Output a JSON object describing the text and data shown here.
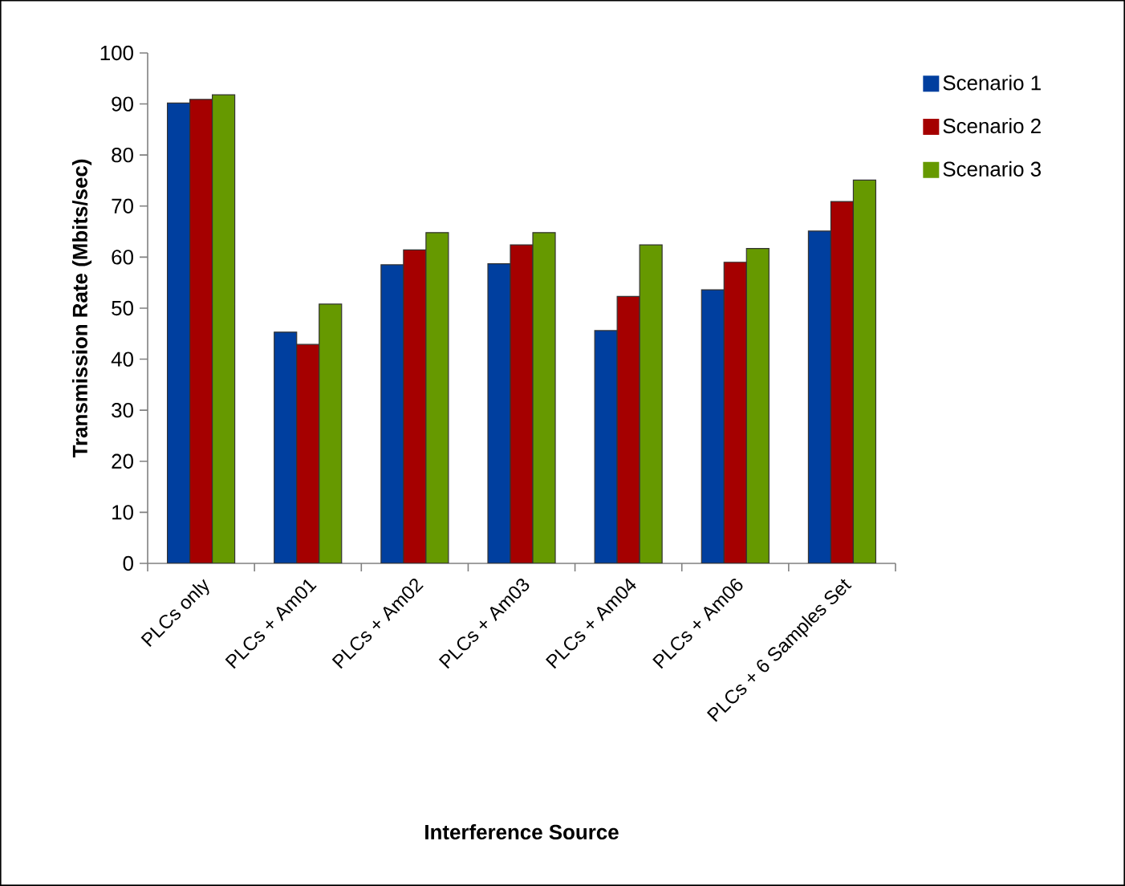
{
  "chart_data": {
    "type": "bar",
    "xlabel": "Interference Source",
    "ylabel": "Transmission Rate (Mbits/sec)",
    "categories": [
      "PLCs only",
      "PLCs + Am01",
      "PLCs + Am02",
      "PLCs + Am03",
      "PLCs + Am04",
      "PLCs + Am06",
      "PLCs + 6 Samples Set"
    ],
    "series": [
      {
        "name": "Scenario 1",
        "color": "#003f9f",
        "values": [
          90.2,
          45.3,
          58.5,
          58.7,
          45.6,
          53.6,
          65.1
        ]
      },
      {
        "name": "Scenario 2",
        "color": "#a50000",
        "values": [
          90.9,
          42.9,
          61.4,
          62.4,
          52.3,
          59.0,
          70.9
        ]
      },
      {
        "name": "Scenario 3",
        "color": "#669900",
        "values": [
          91.8,
          50.8,
          64.8,
          64.8,
          62.4,
          61.7,
          75.1
        ]
      }
    ],
    "ylim": [
      0,
      100
    ],
    "yticks": [
      0,
      10,
      20,
      30,
      40,
      50,
      60,
      70,
      80,
      90,
      100
    ],
    "grid": false,
    "legend": "right"
  }
}
